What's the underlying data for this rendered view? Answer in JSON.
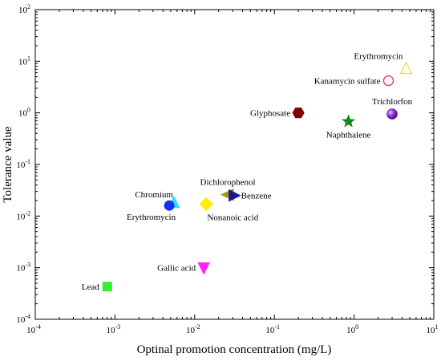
{
  "chart_data": {
    "type": "scatter",
    "xlabel": "Optinal promotion concentration (mg/L)",
    "ylabel": "Tolerance value",
    "xscale": "log",
    "yscale": "log",
    "xlim": [
      0.0001,
      10
    ],
    "ylim": [
      0.0001,
      100
    ],
    "grid": false,
    "x_ticks": [
      {
        "value": 0.0001,
        "base": "10",
        "exp": "-4"
      },
      {
        "value": 0.001,
        "base": "10",
        "exp": "-3"
      },
      {
        "value": 0.01,
        "base": "10",
        "exp": "-2"
      },
      {
        "value": 0.1,
        "base": "10",
        "exp": "-1"
      },
      {
        "value": 1,
        "base": "10",
        "exp": "0"
      },
      {
        "value": 10,
        "base": "10",
        "exp": "1"
      }
    ],
    "y_ticks": [
      {
        "value": 0.0001,
        "base": "10",
        "exp": "-4"
      },
      {
        "value": 0.001,
        "base": "10",
        "exp": "-3"
      },
      {
        "value": 0.01,
        "base": "10",
        "exp": "-2"
      },
      {
        "value": 0.1,
        "base": "10",
        "exp": "-1"
      },
      {
        "value": 1,
        "base": "10",
        "exp": "0"
      },
      {
        "value": 10,
        "base": "10",
        "exp": "1"
      },
      {
        "value": 100,
        "base": "10",
        "exp": "2"
      }
    ],
    "points": [
      {
        "label": "Lead",
        "x": 0.0008,
        "y": 0.00043,
        "marker": "square",
        "color": "#33ee33",
        "filled": true,
        "label_pos": "left"
      },
      {
        "label": "Gallic acid",
        "x": 0.013,
        "y": 0.001,
        "marker": "triangle-down",
        "color": "#ff22ff",
        "filled": true,
        "label_pos": "left"
      },
      {
        "label": "Chromium",
        "x": 0.0055,
        "y": 0.018,
        "marker": "triangle-up",
        "color": "#33ddff",
        "filled": true,
        "label_pos": "left-up"
      },
      {
        "label": "Erythromycin",
        "x": 0.0048,
        "y": 0.016,
        "marker": "circle",
        "color": "#1133ee",
        "filled": true,
        "label_pos": "below-left"
      },
      {
        "label": "Nonanoic acid",
        "x": 0.014,
        "y": 0.017,
        "marker": "diamond",
        "color": "#ffee00",
        "filled": true,
        "label_pos": "below-right"
      },
      {
        "label": "Dichlorophenol",
        "x": 0.026,
        "y": 0.026,
        "marker": "bowtie-left",
        "color": "#999922",
        "filled": true,
        "label_pos": "above"
      },
      {
        "label": "Benzene",
        "x": 0.031,
        "y": 0.025,
        "marker": "triangle-right",
        "color": "#1a1a88",
        "filled": true,
        "label_pos": "right"
      },
      {
        "label": "Glyphosate",
        "x": 0.2,
        "y": 1.0,
        "marker": "hexagon",
        "color": "#800000",
        "filled": true,
        "label_pos": "left"
      },
      {
        "label": "Naphthalene",
        "x": 0.85,
        "y": 0.68,
        "marker": "star",
        "color": "#118811",
        "filled": true,
        "label_pos": "below"
      },
      {
        "label": "Trichlorfon",
        "x": 3.0,
        "y": 0.95,
        "marker": "sphere",
        "color": "#8822cc",
        "filled": true,
        "label_pos": "above"
      },
      {
        "label": "Kanamycin sulfate",
        "x": 2.7,
        "y": 4.2,
        "marker": "circle",
        "color": "#ee2288",
        "filled": false,
        "label_pos": "left"
      },
      {
        "label": "Erythromycin",
        "x": 4.5,
        "y": 7.2,
        "marker": "triangle-up",
        "color": "#dddd33",
        "filled": false,
        "label_pos": "above-left"
      }
    ]
  }
}
